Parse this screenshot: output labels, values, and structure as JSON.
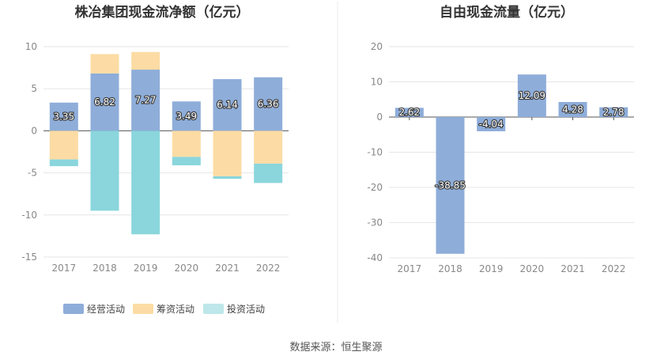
{
  "source_label": "数据来源：恒生聚源",
  "chart_data": [
    {
      "type": "bar",
      "stacked": true,
      "title": "株冶集团现金流净额（亿元）",
      "categories": [
        "2017",
        "2018",
        "2019",
        "2020",
        "2021",
        "2022"
      ],
      "ylim": [
        -15,
        10
      ],
      "yticks": [
        10,
        5,
        0,
        -5,
        -10,
        -15
      ],
      "grid": true,
      "legend_position": "bottom",
      "series": [
        {
          "name": "经营活动",
          "color": "#8eadd9",
          "values": [
            3.35,
            6.82,
            7.27,
            3.49,
            6.14,
            6.36
          ],
          "labels": [
            "3.35",
            "6.82",
            "7.27",
            "3.49",
            "6.14",
            "6.36"
          ]
        },
        {
          "name": "筹资活动",
          "color": "#fcdca4",
          "values": [
            -3.4,
            2.3,
            2.1,
            -3.1,
            -5.4,
            -3.9
          ]
        },
        {
          "name": "投资活动",
          "color": "#8ad6dc",
          "values": [
            -0.8,
            -9.5,
            -12.3,
            -1.0,
            -0.3,
            -2.3
          ]
        }
      ]
    },
    {
      "type": "bar",
      "title": "自由现金流量（亿元）",
      "categories": [
        "2017",
        "2018",
        "2019",
        "2020",
        "2021",
        "2022"
      ],
      "ylim": [
        -40,
        20
      ],
      "yticks": [
        20,
        10,
        0,
        -10,
        -20,
        -30,
        -40
      ],
      "grid": true,
      "color": "#8eadd9",
      "values": [
        2.62,
        -38.85,
        -4.04,
        12.09,
        4.28,
        2.78
      ],
      "labels": [
        "2.62",
        "-38.85",
        "-4.04",
        "12.09",
        "4.28",
        "2.78"
      ]
    }
  ]
}
